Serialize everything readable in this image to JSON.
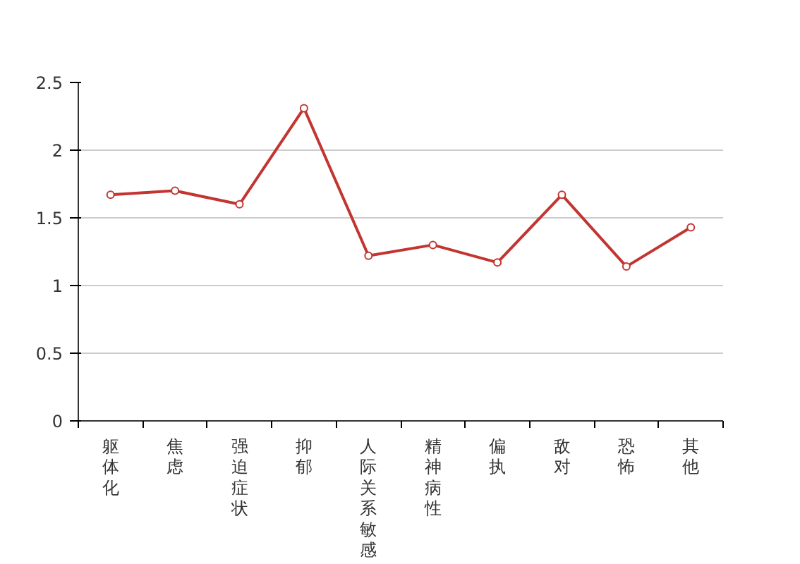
{
  "chart_data": {
    "type": "line",
    "categories": [
      "躯体化",
      "焦虑",
      "强迫症状",
      "抑郁",
      "人际关系敏感",
      "精神病性",
      "偏执",
      "敌对",
      "恐怖",
      "其他"
    ],
    "series": [
      {
        "color": "#c23531",
        "values": [
          1.67,
          1.7,
          1.6,
          2.31,
          1.22,
          1.3,
          1.17,
          1.67,
          1.14,
          1.43
        ]
      }
    ],
    "ylim": [
      0,
      2.5
    ],
    "yticks": [
      0,
      0.5,
      1,
      1.5,
      2,
      2.5
    ],
    "grid": "y",
    "marker": "circle",
    "line_style": "solid"
  }
}
